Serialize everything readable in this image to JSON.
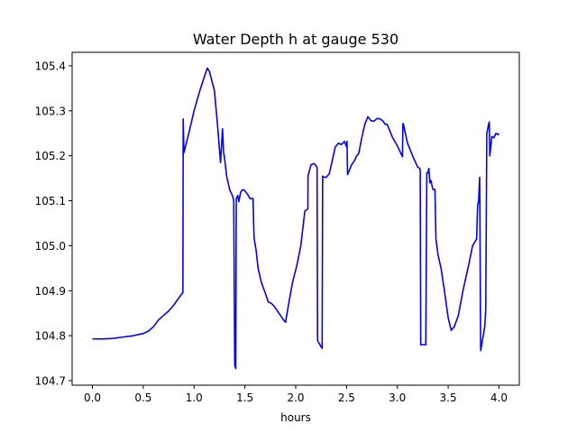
{
  "chart_data": {
    "type": "line",
    "title": "Water Depth h at gauge 530",
    "xlabel": "hours",
    "ylabel": "",
    "xlim": [
      -0.2,
      4.2
    ],
    "ylim": [
      104.69,
      105.43
    ],
    "xticks": [
      0.0,
      0.5,
      1.0,
      1.5,
      2.0,
      2.5,
      3.0,
      3.5,
      4.0
    ],
    "xtick_labels": [
      "0.0",
      "0.5",
      "1.0",
      "1.5",
      "2.0",
      "2.5",
      "3.0",
      "3.5",
      "4.0"
    ],
    "yticks": [
      104.7,
      104.8,
      104.9,
      105.0,
      105.1,
      105.2,
      105.3,
      105.4
    ],
    "ytick_labels": [
      "104.7",
      "104.8",
      "104.9",
      "105.0",
      "105.1",
      "105.2",
      "105.3",
      "105.4"
    ],
    "grid": false,
    "series": [
      {
        "color": "#0000ff",
        "x": [
          0.0,
          0.1,
          0.2,
          0.3,
          0.4,
          0.5,
          0.55,
          0.6,
          0.65,
          0.7,
          0.75,
          0.8,
          0.85,
          0.89,
          0.893,
          0.9,
          0.95,
          1.0,
          1.05,
          1.1,
          1.13,
          1.15,
          1.2,
          1.23,
          1.26,
          1.28,
          1.29,
          1.3,
          1.32,
          1.35,
          1.38,
          1.39,
          1.4,
          1.41,
          1.415,
          1.43,
          1.44,
          1.45,
          1.46,
          1.48,
          1.5,
          1.53,
          1.55,
          1.58,
          1.59,
          1.61,
          1.63,
          1.66,
          1.7,
          1.73,
          1.76,
          1.79,
          1.82,
          1.85,
          1.88,
          1.9,
          1.93,
          1.97,
          2.01,
          2.05,
          2.09,
          2.12,
          2.121,
          2.15,
          2.18,
          2.21,
          2.215,
          2.22,
          2.26,
          2.265,
          2.27,
          2.3,
          2.33,
          2.36,
          2.39,
          2.42,
          2.45,
          2.48,
          2.5,
          2.505,
          2.51,
          2.55,
          2.58,
          2.6,
          2.62,
          2.65,
          2.68,
          2.71,
          2.74,
          2.77,
          2.8,
          2.83,
          2.86,
          2.88,
          2.9,
          2.95,
          3.0,
          3.05,
          3.055,
          3.06,
          3.1,
          3.15,
          3.2,
          3.22,
          3.225,
          3.23,
          3.28,
          3.29,
          3.3,
          3.31,
          3.32,
          3.33,
          3.35,
          3.37,
          3.38,
          3.4,
          3.43,
          3.46,
          3.5,
          3.53,
          3.56,
          3.6,
          3.65,
          3.7,
          3.74,
          3.78,
          3.79,
          3.8,
          3.81,
          3.82,
          3.83,
          3.86,
          3.87,
          3.88,
          3.9,
          3.905,
          3.91,
          3.93,
          3.95,
          3.97,
          3.99,
          4.0
        ],
        "y": [
          104.793,
          104.793,
          104.794,
          104.797,
          104.8,
          104.805,
          104.81,
          104.82,
          104.835,
          104.845,
          104.855,
          104.868,
          104.884,
          104.896,
          105.282,
          105.207,
          105.252,
          105.3,
          105.34,
          105.375,
          105.395,
          105.388,
          105.345,
          105.27,
          105.185,
          105.26,
          105.208,
          105.195,
          105.155,
          105.125,
          105.11,
          105.1,
          104.735,
          104.727,
          105.105,
          105.112,
          105.098,
          105.11,
          105.12,
          105.125,
          105.122,
          105.113,
          105.105,
          105.105,
          105.018,
          104.99,
          104.95,
          104.92,
          104.895,
          104.875,
          104.872,
          104.865,
          104.855,
          104.845,
          104.835,
          104.83,
          104.87,
          104.92,
          104.955,
          105.0,
          105.077,
          105.082,
          105.155,
          105.18,
          105.183,
          105.175,
          104.79,
          104.787,
          104.772,
          105.155,
          105.153,
          105.152,
          105.16,
          105.19,
          105.22,
          105.228,
          105.225,
          105.232,
          105.22,
          105.232,
          105.158,
          105.18,
          105.19,
          105.2,
          105.205,
          105.24,
          105.27,
          105.287,
          105.278,
          105.277,
          105.283,
          105.282,
          105.277,
          105.27,
          105.27,
          105.242,
          105.222,
          105.198,
          105.272,
          105.27,
          105.228,
          105.2,
          105.175,
          105.172,
          105.168,
          104.78,
          104.78,
          105.162,
          105.162,
          105.172,
          105.14,
          105.145,
          105.125,
          105.125,
          105.015,
          104.98,
          104.95,
          104.905,
          104.84,
          104.812,
          104.82,
          104.845,
          104.905,
          104.955,
          105.0,
          105.015,
          105.09,
          105.1,
          105.152,
          104.767,
          104.78,
          104.82,
          104.86,
          105.25,
          105.272,
          105.275,
          105.2,
          105.243,
          105.24,
          105.25,
          105.247,
          105.25
        ]
      }
    ]
  }
}
